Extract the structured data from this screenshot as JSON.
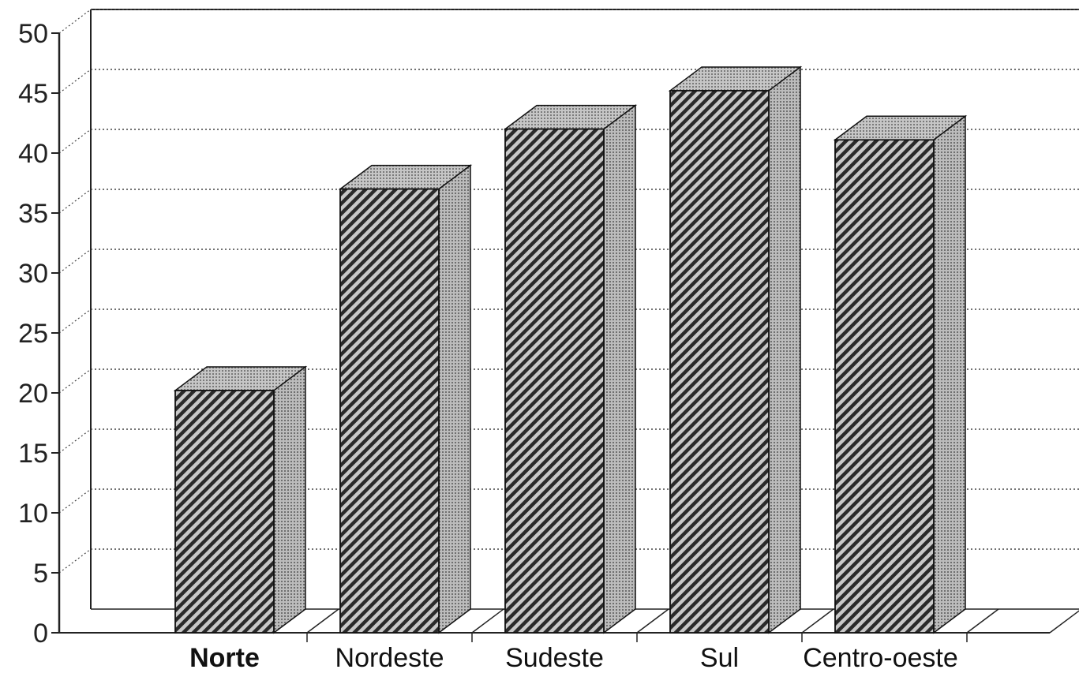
{
  "chart_data": {
    "type": "bar",
    "categories": [
      "Norte",
      "Nordeste",
      "Sudeste",
      "Sul",
      "Centro-oeste"
    ],
    "values": [
      20.2,
      37.0,
      42.0,
      45.2,
      41.1
    ],
    "ylim": [
      0,
      50
    ],
    "yticks": [
      0,
      5,
      10,
      15,
      20,
      25,
      30,
      35,
      40,
      45,
      50
    ],
    "ytick_labels": [
      "0",
      "5",
      "10",
      "15",
      "20",
      "25",
      "30",
      "35",
      "40",
      "45",
      "50"
    ],
    "grid": true,
    "style": "3d-hatched",
    "colors": {
      "bar_hatch": "#2a2a2a",
      "bar_face": "#bdbdbd",
      "bar_side": "#9a9a9a",
      "bar_top": "#a8a8a8",
      "grid": "#444444",
      "axis": "#222222"
    }
  }
}
